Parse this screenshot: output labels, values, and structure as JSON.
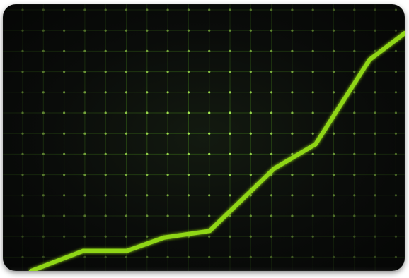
{
  "theme": {
    "line_color": "#8fd614",
    "grid_color": "#3f7a1a",
    "dot_color": "#b6ff5a"
  },
  "chart_data": {
    "type": "line",
    "title": "",
    "xlabel": "",
    "ylabel": "",
    "grid": true,
    "legend": "none",
    "xlim": [
      0,
      18
    ],
    "ylim": [
      0,
      12
    ],
    "x": [
      0,
      2.5,
      4.6,
      6.4,
      8.6,
      11.7,
      13.7,
      16.3,
      18
    ],
    "series": [
      {
        "values": [
          0,
          0.9,
          0.9,
          1.5,
          1.8,
          4.6,
          5.7,
          9.5,
          10.7
        ]
      }
    ]
  }
}
